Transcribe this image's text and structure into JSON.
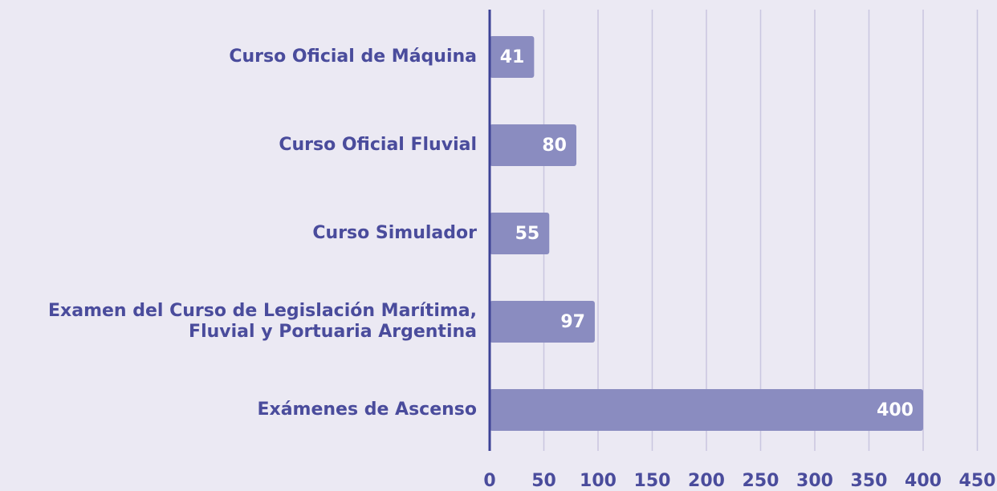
{
  "chart_data": {
    "type": "hbar",
    "categories": [
      "Curso Oficial de Máquina",
      "Curso Oficial Fluvial",
      "Curso Simulador",
      "Examen del Curso de Legislación Marítima,\nFluvial y Portuaria Argentina",
      "Exámenes de Ascenso"
    ],
    "values": [
      41,
      80,
      55,
      97,
      400
    ],
    "color": "#8a8cc0",
    "xlim": [
      0,
      450
    ],
    "xticks": [
      0,
      50,
      100,
      150,
      200,
      250,
      300,
      350,
      400,
      450
    ],
    "grid": true
  }
}
